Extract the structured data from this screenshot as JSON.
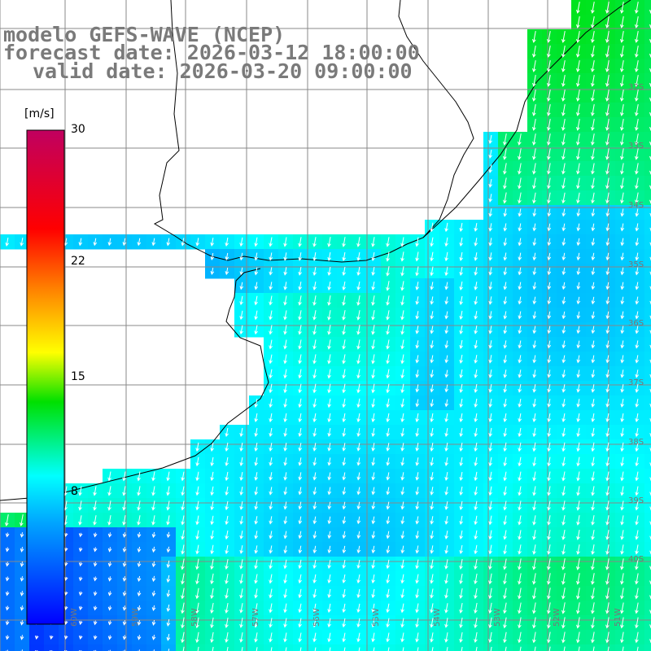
{
  "title": {
    "line1": "modelo GEFS-WAVE (NCEP)",
    "line2": "forecast date: 2026-03-12 18:00:00",
    "line3": "valid date: 2026-03-20 09:00:00"
  },
  "legend": {
    "unit": "[m/s]",
    "ticks": [
      {
        "label": "30",
        "value": 30
      },
      {
        "label": "22",
        "value": 22
      },
      {
        "label": "15",
        "value": 15
      },
      {
        "label": "8",
        "value": 8
      }
    ],
    "range": [
      0,
      30
    ],
    "colors": [
      "#0000ff",
      "#00a0ff",
      "#00ffff",
      "#00e000",
      "#ffff00",
      "#ff8000",
      "#ff0000",
      "#c00060"
    ]
  },
  "map": {
    "lat_labels": [
      "32S",
      "33S",
      "34S",
      "35S",
      "36S",
      "37S",
      "38S",
      "39S",
      "40S"
    ],
    "lon_labels": [
      "60W",
      "59W",
      "58W",
      "57W",
      "56W",
      "55W",
      "54W",
      "53W",
      "52W",
      "51W"
    ],
    "land_color": "#ffffff",
    "grid_color": "#888888",
    "arrow_color": "#ffffff",
    "wind_direction": "south-southwest"
  }
}
